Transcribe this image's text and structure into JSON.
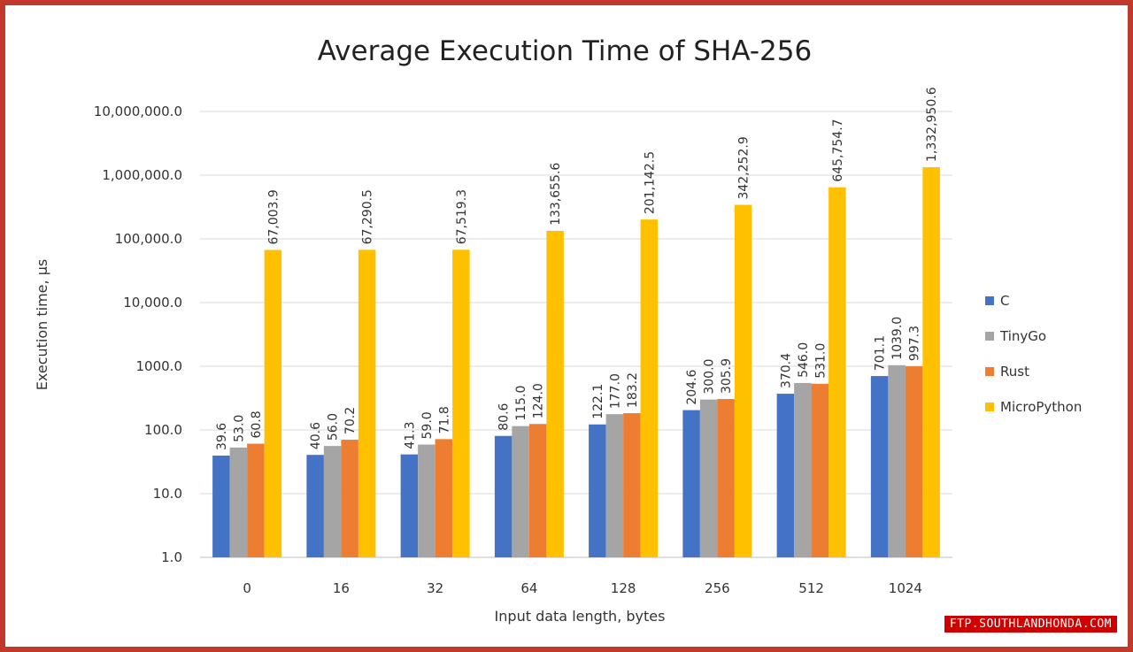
{
  "chart_data": {
    "type": "bar",
    "title": "Average Execution Time of SHA-256",
    "xlabel": "Input data length, bytes",
    "ylabel": "Execution time, μs",
    "y_scale": "log",
    "ylim": [
      1,
      10000000
    ],
    "y_tick_labels": [
      "1.0",
      "10.0",
      "100.0",
      "1000.0",
      "10,000.0",
      "100,000.0",
      "1,000,000.0",
      "10,000,000.0"
    ],
    "y_tick_values": [
      1,
      10,
      100,
      1000,
      10000,
      100000,
      1000000,
      10000000
    ],
    "grid": true,
    "legend_position": "right",
    "categories": [
      "0",
      "16",
      "32",
      "64",
      "128",
      "256",
      "512",
      "1024"
    ],
    "series": [
      {
        "name": "C",
        "color": "#4472c4",
        "values": [
          39.6,
          40.6,
          41.3,
          80.6,
          122.1,
          204.6,
          370.4,
          701.1
        ],
        "labels": [
          "39.6",
          "40.6",
          "41.3",
          "80.6",
          "122.1",
          "204.6",
          "370.4",
          "701.1"
        ]
      },
      {
        "name": "TinyGo",
        "color": "#a5a5a5",
        "values": [
          53.0,
          56.0,
          59.0,
          115.0,
          177.0,
          300.0,
          546.0,
          1039.0
        ],
        "labels": [
          "53.0",
          "56.0",
          "59.0",
          "115.0",
          "177.0",
          "300.0",
          "546.0",
          "1039.0"
        ]
      },
      {
        "name": "Rust",
        "color": "#ed7d31",
        "values": [
          60.8,
          70.2,
          71.8,
          124.0,
          183.2,
          305.9,
          531.0,
          997.3
        ],
        "labels": [
          "60.8",
          "70.2",
          "71.8",
          "124.0",
          "183.2",
          "305.9",
          "531.0",
          "997.3"
        ]
      },
      {
        "name": "MicroPython",
        "color": "#ffc000",
        "values": [
          67003.9,
          67290.5,
          67519.3,
          133655.6,
          201142.5,
          342252.9,
          645754.7,
          1332950.6
        ],
        "labels": [
          "67,003.9",
          "67,290.5",
          "67,519.3",
          "133,655.6",
          "201,142.5",
          "342,252.9",
          "645,754.7",
          "1,332,950.6"
        ]
      }
    ]
  },
  "watermark": "FTP.SOUTHLANDHONDA.COM"
}
